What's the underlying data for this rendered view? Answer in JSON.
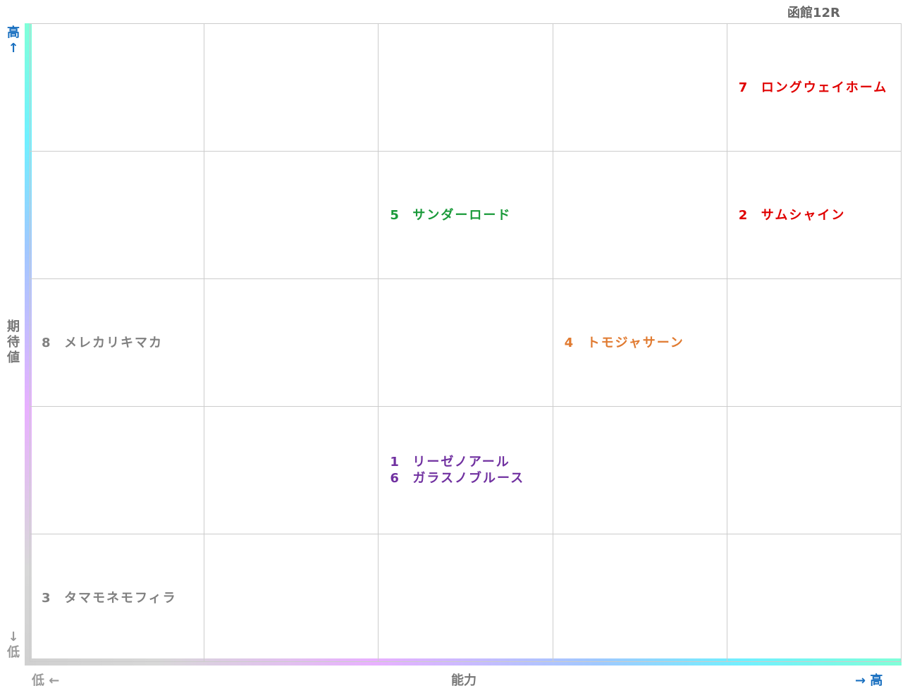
{
  "title": "函館12R",
  "y_axis": {
    "high": "高↑",
    "label": "期待値",
    "low": "↓低"
  },
  "x_axis": {
    "low": "低 ←",
    "label": "能力",
    "high": "→ 高"
  },
  "grid": {
    "rows": [
      [
        [],
        [],
        [],
        [],
        [
          {
            "number": 7,
            "name": "ロングウェイホーム",
            "color": "#e00000"
          }
        ]
      ],
      [
        [],
        [],
        [
          {
            "number": 5,
            "name": "サンダーロード",
            "color": "#1a9a3a"
          }
        ],
        [],
        [
          {
            "number": 2,
            "name": "サムシャイン",
            "color": "#e00000"
          }
        ]
      ],
      [
        [
          {
            "number": 8,
            "name": "メレカリキマカ",
            "color": "#808080"
          }
        ],
        [],
        [],
        [
          {
            "number": 4,
            "name": "トモジャサーン",
            "color": "#e07a30"
          }
        ],
        []
      ],
      [
        [],
        [],
        [
          {
            "number": 1,
            "name": "リーゼノアール",
            "color": "#7030a0"
          },
          {
            "number": 6,
            "name": "ガラスノブルース",
            "color": "#7030a0"
          }
        ],
        [],
        []
      ],
      [
        [
          {
            "number": 3,
            "name": "タマモネモフィラ",
            "color": "#808080"
          }
        ],
        [],
        [],
        [],
        []
      ]
    ]
  }
}
